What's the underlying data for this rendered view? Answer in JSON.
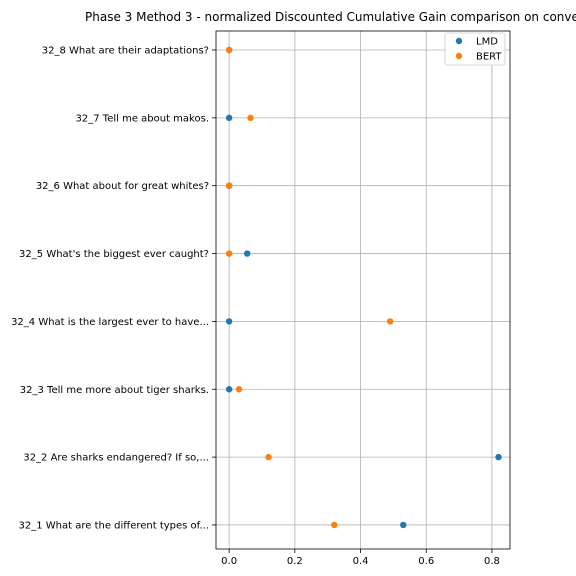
{
  "chart_data": {
    "type": "scatter",
    "title": "Phase 3 Method 3 - normalized Discounted Cumulative Gain comparison on conve",
    "xlabel": "",
    "ylabel": "",
    "xlim": [
      -0.04,
      0.855
    ],
    "x_ticks": [
      0.0,
      0.2,
      0.4,
      0.6,
      0.8
    ],
    "x_tick_labels": [
      "0.0",
      "0.2",
      "0.4",
      "0.6",
      "0.8"
    ],
    "grid": true,
    "legend_position": "top-right",
    "categories": [
      "32_1 What are the different types of...",
      "32_2 Are sharks endangered? If so,...",
      "32_3 Tell me more about tiger sharks.",
      "32_4 What is the largest ever to have...",
      "32_5 What's the biggest ever caught?",
      "32_6 What about for great whites?",
      "32_7 Tell me about makos.",
      "32_8 What are their adaptations?"
    ],
    "series": [
      {
        "name": "LMD",
        "color": "#1f77b4",
        "values": [
          0.53,
          0.82,
          0.0,
          0.0,
          0.055,
          0.0,
          0.0,
          0.0
        ]
      },
      {
        "name": "BERT",
        "color": "#ff7f0e",
        "values": [
          0.32,
          0.12,
          0.03,
          0.49,
          0.0,
          0.0,
          0.065,
          0.0
        ]
      }
    ]
  }
}
